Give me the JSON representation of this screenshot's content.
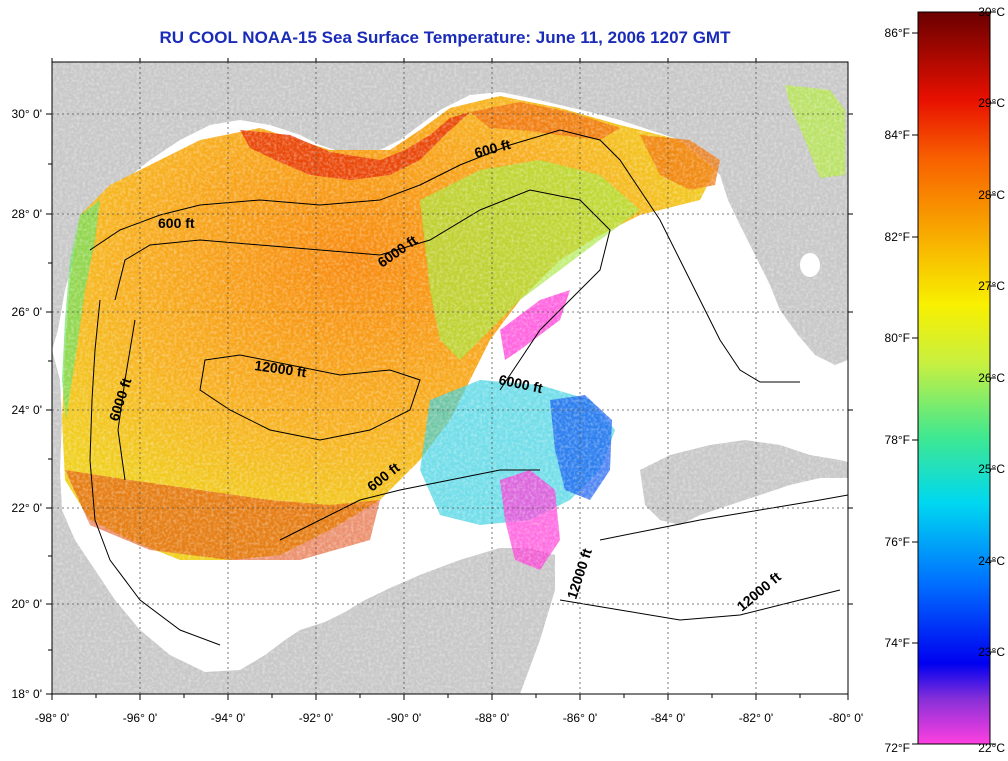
{
  "title": "RU COOL  NOAA-15  Sea Surface Temperature:  June 11, 2006 1207 GMT",
  "map": {
    "lon_ticks": [
      "-98° 0'",
      "-96° 0'",
      "-94° 0'",
      "-92° 0'",
      "-90° 0'",
      "-88° 0'",
      "-86° 0'",
      "-84° 0'",
      "-82° 0'",
      "-80° 0'"
    ],
    "lat_ticks": [
      "30° 0'",
      "28° 0'",
      "26° 0'",
      "24° 0'",
      "22° 0'",
      "20° 0'",
      "18° 0'"
    ],
    "contour_labels": [
      "600 ft",
      "600 ft",
      "6000 ft",
      "12000 ft",
      "6000 ft",
      "6000 ft",
      "600 ft",
      "12000 ft",
      "12000 ft"
    ],
    "colors": {
      "land": "#c8c8c8",
      "no_data": "#ffffff",
      "gridline": "#555555"
    }
  },
  "colorbar": {
    "fahrenheit_labels": [
      "86°F",
      "84°F",
      "82°F",
      "80°F",
      "78°F",
      "76°F",
      "74°F",
      "72°F"
    ],
    "celsius_labels": [
      "30°C",
      "29°C",
      "28°C",
      "27°C",
      "26°C",
      "25°C",
      "24°C",
      "23°C",
      "22°C"
    ],
    "range_c": [
      22,
      30
    ],
    "colormap": [
      "#ff40d8",
      "#7f2ad8",
      "#0000f0",
      "#0068ff",
      "#00d8f0",
      "#40e890",
      "#b8f040",
      "#f8f000",
      "#f8b000",
      "#f86800",
      "#e81000",
      "#a00000",
      "#6a0000"
    ]
  }
}
